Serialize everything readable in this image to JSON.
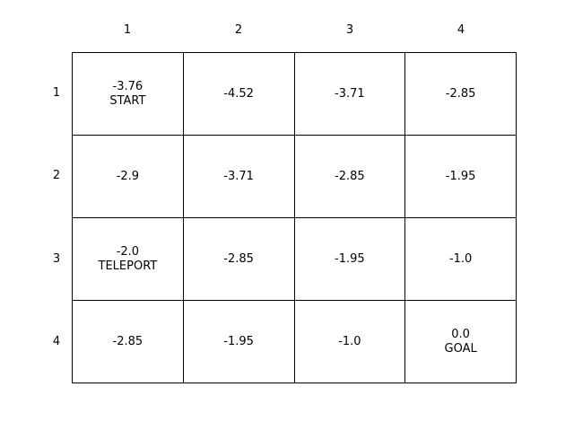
{
  "columns": [
    "1",
    "2",
    "3",
    "4"
  ],
  "rows": [
    "1",
    "2",
    "3",
    "4"
  ],
  "cells": [
    [
      {
        "value": "-3.76",
        "tag": "START"
      },
      {
        "value": "-4.52",
        "tag": ""
      },
      {
        "value": "-3.71",
        "tag": ""
      },
      {
        "value": "-2.85",
        "tag": ""
      }
    ],
    [
      {
        "value": "-2.9",
        "tag": ""
      },
      {
        "value": "-3.71",
        "tag": ""
      },
      {
        "value": "-2.85",
        "tag": ""
      },
      {
        "value": "-1.95",
        "tag": ""
      }
    ],
    [
      {
        "value": "-2.0",
        "tag": "TELEPORT"
      },
      {
        "value": "-2.85",
        "tag": ""
      },
      {
        "value": "-1.95",
        "tag": ""
      },
      {
        "value": "-1.0",
        "tag": ""
      }
    ],
    [
      {
        "value": "-2.85",
        "tag": ""
      },
      {
        "value": "-1.95",
        "tag": ""
      },
      {
        "value": "-1.0",
        "tag": ""
      },
      {
        "value": "0.0",
        "tag": "GOAL"
      }
    ]
  ]
}
